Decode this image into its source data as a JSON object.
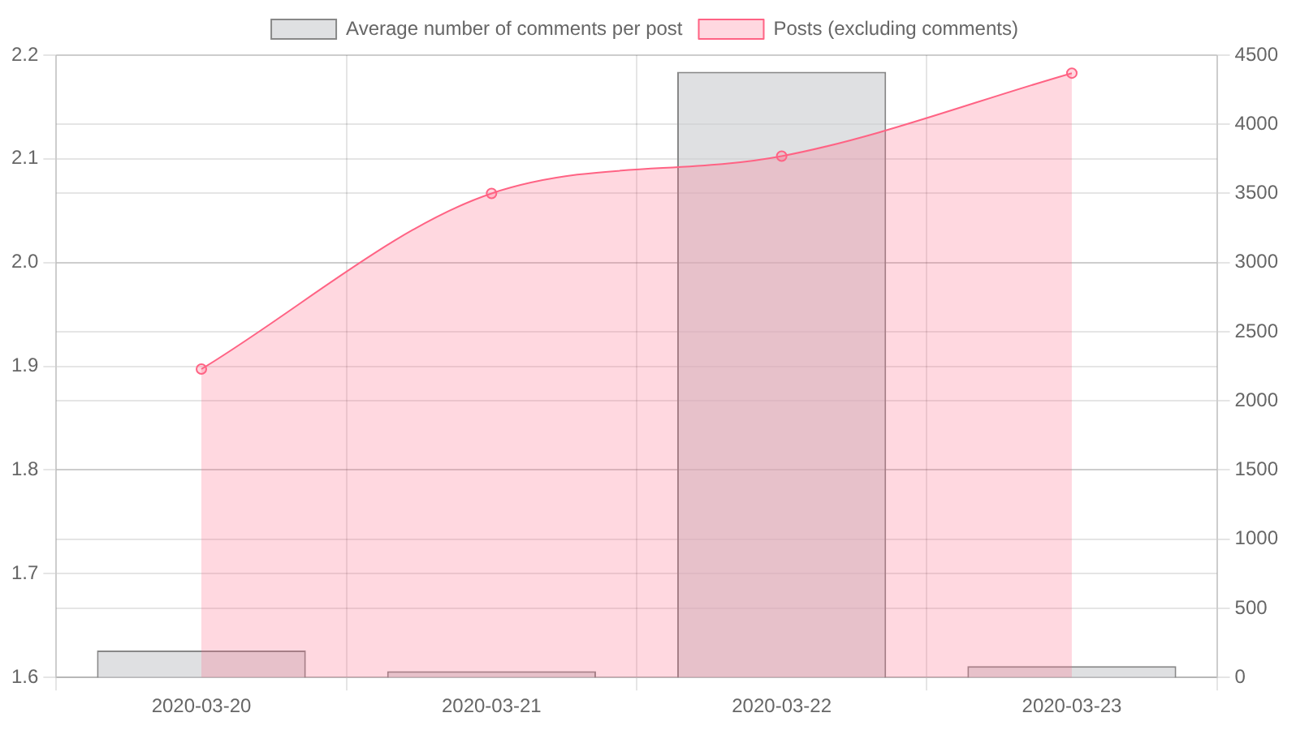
{
  "chart_data": {
    "type": "bar",
    "categories": [
      "2020-03-20",
      "2020-03-21",
      "2020-03-22",
      "2020-03-23"
    ],
    "series": [
      {
        "name": "Average number of comments per post",
        "color": "#c9cbcf",
        "values": [
          1.626,
          1.606,
          2.184,
          1.611
        ]
      },
      {
        "name": "Posts (excluding comments)",
        "type": "area",
        "axis": "y2",
        "color": "#ff6384",
        "values": [
          2230,
          3500,
          3770,
          4370
        ]
      }
    ],
    "ylim": [
      1.6,
      2.2
    ],
    "yticks": [
      1.6,
      1.7,
      1.8,
      1.9,
      {
        "value": 2,
        "label": "2.0"
      },
      2.1,
      2.2
    ],
    "y2lim": [
      0,
      4500
    ],
    "y2ticks": [
      0,
      500,
      1000,
      1500,
      2000,
      2500,
      3000,
      3500,
      4000,
      4500
    ],
    "grid": true,
    "legend": "top",
    "marker": "circle"
  }
}
